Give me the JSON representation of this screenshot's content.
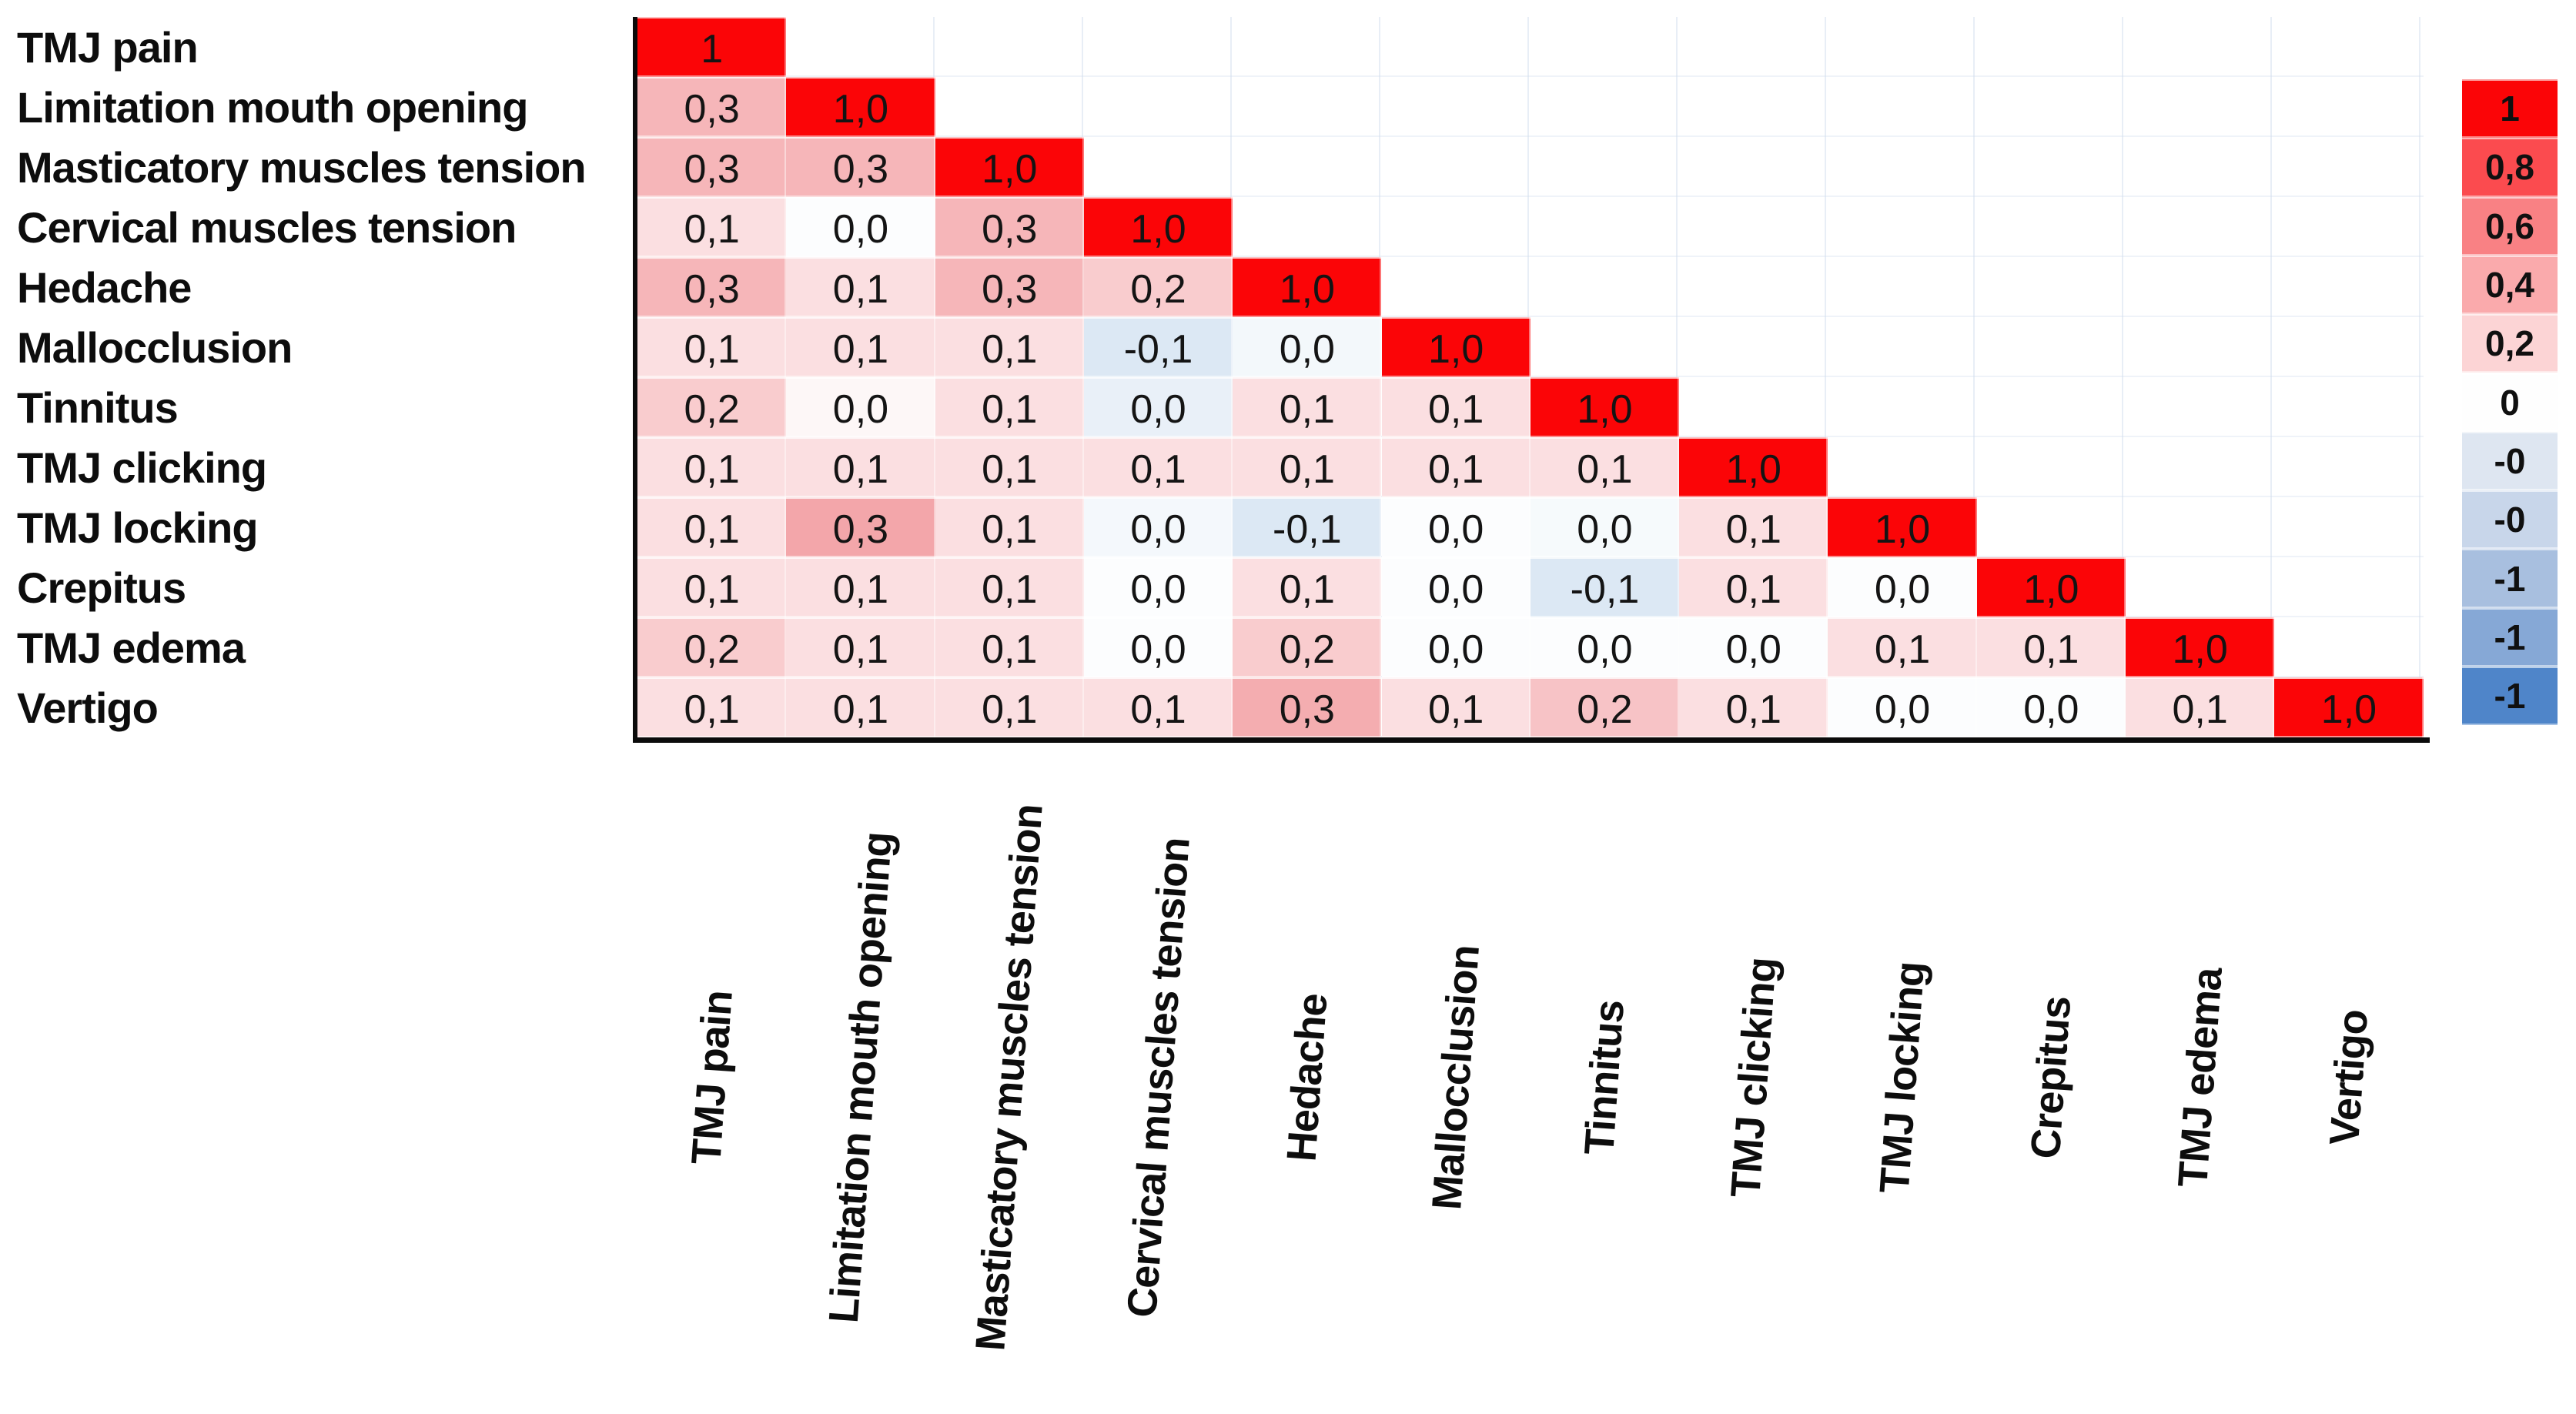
{
  "chart_data": {
    "type": "heatmap",
    "title": "",
    "layout": "lower-triangle-correlation-matrix",
    "value_format": "comma-decimal",
    "row_labels": [
      "TMJ pain",
      "Limitation mouth opening",
      "Masticatory muscles tension",
      "Cervical muscles tension",
      "Hedache",
      "Mallocclusion",
      "Tinnitus",
      "TMJ clicking",
      "TMJ locking",
      "Crepitus",
      "TMJ edema",
      "Vertigo"
    ],
    "col_labels": [
      "TMJ pain",
      "Limitation mouth opening",
      "Masticatory muscles tension",
      "Cervical muscles tension",
      "Hedache",
      "Mallocclusion",
      "Tinnitus",
      "TMJ clicking",
      "TMJ locking",
      "Crepitus",
      "TMJ edema",
      "Vertigo"
    ],
    "rows": [
      [
        {
          "t": "1",
          "v": 1
        }
      ],
      [
        {
          "t": "0,3",
          "v": 0.3
        },
        {
          "t": "1,0",
          "v": 1
        }
      ],
      [
        {
          "t": "0,3",
          "v": 0.3
        },
        {
          "t": "0,3",
          "v": 0.3
        },
        {
          "t": "1,0",
          "v": 1
        }
      ],
      [
        {
          "t": "0,1",
          "v": 0.1
        },
        {
          "t": "0,0",
          "v": 0
        },
        {
          "t": "0,3",
          "v": 0.3
        },
        {
          "t": "1,0",
          "v": 1
        }
      ],
      [
        {
          "t": "0,3",
          "v": 0.3
        },
        {
          "t": "0,1",
          "v": 0.1
        },
        {
          "t": "0,3",
          "v": 0.3
        },
        {
          "t": "0,2",
          "v": 0.2
        },
        {
          "t": "1,0",
          "v": 1
        }
      ],
      [
        {
          "t": "0,1",
          "v": 0.1
        },
        {
          "t": "0,1",
          "v": 0.1
        },
        {
          "t": "0,1",
          "v": 0.1
        },
        {
          "t": "-0,1",
          "v": -0.1
        },
        {
          "t": "0,0",
          "v": 0,
          "c": "#F3F8FB"
        },
        {
          "t": "1,0",
          "v": 1
        }
      ],
      [
        {
          "t": "0,2",
          "v": 0.2
        },
        {
          "t": "0,0",
          "v": 0,
          "c": "#FDF7F7"
        },
        {
          "t": "0,1",
          "v": 0.1
        },
        {
          "t": "0,0",
          "v": 0,
          "c": "#E9F0F8"
        },
        {
          "t": "0,1",
          "v": 0.1
        },
        {
          "t": "0,1",
          "v": 0.1
        },
        {
          "t": "1,0",
          "v": 1
        }
      ],
      [
        {
          "t": "0,1",
          "v": 0.1
        },
        {
          "t": "0,1",
          "v": 0.1
        },
        {
          "t": "0,1",
          "v": 0.1
        },
        {
          "t": "0,1",
          "v": 0.1
        },
        {
          "t": "0,1",
          "v": 0.1
        },
        {
          "t": "0,1",
          "v": 0.1
        },
        {
          "t": "0,1",
          "v": 0.1
        },
        {
          "t": "1,0",
          "v": 1
        }
      ],
      [
        {
          "t": "0,1",
          "v": 0.1
        },
        {
          "t": "0,3",
          "v": 0.3,
          "c": "#F3A6AA"
        },
        {
          "t": "0,1",
          "v": 0.1
        },
        {
          "t": "0,0",
          "v": 0,
          "c": "#F4F8FC"
        },
        {
          "t": "-0,1",
          "v": -0.1
        },
        {
          "t": "0,0",
          "v": 0
        },
        {
          "t": "0,0",
          "v": 0,
          "c": "#F6FAFC"
        },
        {
          "t": "0,1",
          "v": 0.1
        },
        {
          "t": "1,0",
          "v": 1
        }
      ],
      [
        {
          "t": "0,1",
          "v": 0.1
        },
        {
          "t": "0,1",
          "v": 0.1
        },
        {
          "t": "0,1",
          "v": 0.1
        },
        {
          "t": "0,0",
          "v": 0
        },
        {
          "t": "0,1",
          "v": 0.1
        },
        {
          "t": "0,0",
          "v": 0
        },
        {
          "t": "-0,1",
          "v": -0.1
        },
        {
          "t": "0,1",
          "v": 0.1
        },
        {
          "t": "0,0",
          "v": 0
        },
        {
          "t": "1,0",
          "v": 1
        }
      ],
      [
        {
          "t": "0,2",
          "v": 0.2
        },
        {
          "t": "0,1",
          "v": 0.1
        },
        {
          "t": "0,1",
          "v": 0.1
        },
        {
          "t": "0,0",
          "v": 0
        },
        {
          "t": "0,2",
          "v": 0.2
        },
        {
          "t": "0,0",
          "v": 0
        },
        {
          "t": "0,0",
          "v": 0
        },
        {
          "t": "0,0",
          "v": 0
        },
        {
          "t": "0,1",
          "v": 0.1
        },
        {
          "t": "0,1",
          "v": 0.1
        },
        {
          "t": "1,0",
          "v": 1
        }
      ],
      [
        {
          "t": "0,1",
          "v": 0.1
        },
        {
          "t": "0,1",
          "v": 0.1
        },
        {
          "t": "0,1",
          "v": 0.1
        },
        {
          "t": "0,1",
          "v": 0.1
        },
        {
          "t": "0,3",
          "v": 0.3,
          "c": "#F4ADB0"
        },
        {
          "t": "0,1",
          "v": 0.1
        },
        {
          "t": "0,2",
          "v": 0.2,
          "c": "#F7C3C6"
        },
        {
          "t": "0,1",
          "v": 0.1
        },
        {
          "t": "0,0",
          "v": 0
        },
        {
          "t": "0,0",
          "v": 0
        },
        {
          "t": "0,1",
          "v": 0.1
        },
        {
          "t": "1,0",
          "v": 1
        }
      ]
    ]
  },
  "legend": {
    "entries": [
      {
        "label": "1",
        "color": "#FB0507"
      },
      {
        "label": "0,8",
        "color": "#FB4B4F"
      },
      {
        "label": "0,6",
        "color": "#F98184"
      },
      {
        "label": "0,4",
        "color": "#FAAAAC"
      },
      {
        "label": "0,2",
        "color": "#FCD4D5"
      },
      {
        "label": "0",
        "color": "#FEFEFE"
      },
      {
        "label": "-0",
        "color": "#DEE6F1"
      },
      {
        "label": "-0",
        "color": "#C8D6EA"
      },
      {
        "label": "-1",
        "color": "#A8BFDF"
      },
      {
        "label": "-1",
        "color": "#86A8D6"
      },
      {
        "label": "-1",
        "color": "#4F85C9"
      }
    ]
  },
  "style": {
    "positive_max_color": "#FB0507",
    "negative_max_color": "#4F85C9",
    "zero_color": "#FFFFFF",
    "text_color": "#0D0D0D",
    "axis_color": "#0B0B0B",
    "palette": {
      "1.0": "#FB0507",
      "0.3": "#F6B6B9",
      "0.2": "#F9CCCE",
      "0.1": "#FBDFE1",
      "0.0": "#FCFDFE",
      "-0.1": "#DCE8F4"
    }
  }
}
